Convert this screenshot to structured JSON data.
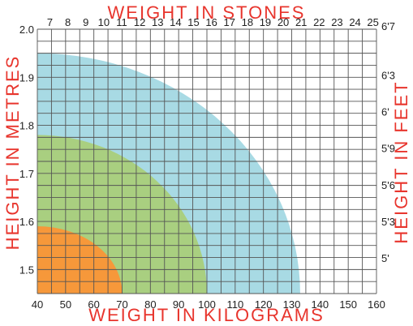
{
  "chart_data": {
    "type": "area",
    "title_top": "WEIGHT IN STONES",
    "xlabel": "WEIGHT IN KILOGRAMS",
    "ylabel_left": "HEIGHT IN METRES",
    "ylabel_right": "HEIGHT IN FEET",
    "xlim": [
      40,
      160
    ],
    "ylim": [
      1.45,
      2.0
    ],
    "x_ticks": [
      40,
      50,
      60,
      70,
      80,
      90,
      100,
      110,
      120,
      130,
      140,
      150,
      160
    ],
    "y_ticks": [
      1.5,
      1.6,
      1.7,
      1.8,
      1.9,
      2.0
    ],
    "y_tick_labels": [
      "1.5",
      "1.6",
      "1.7",
      "1.8",
      "1.9",
      "2.0"
    ],
    "stone_ticks": [
      7,
      8,
      9,
      10,
      11,
      12,
      13,
      14,
      15,
      16,
      17,
      18,
      19,
      20,
      21,
      22,
      23,
      24,
      25
    ],
    "feet_ticks": [
      {
        "label": "5'",
        "metres": 1.524
      },
      {
        "label": "5'3",
        "metres": 1.6
      },
      {
        "label": "5'6",
        "metres": 1.676
      },
      {
        "label": "5'9",
        "metres": 1.753
      },
      {
        "label": "6'",
        "metres": 1.829
      },
      {
        "label": "6'3",
        "metres": 1.905
      },
      {
        "label": "6'7",
        "metres": 2.007
      }
    ],
    "grid": true,
    "regions": [
      {
        "color": "#a8dae4",
        "x_at_base": 133,
        "y_at_left": 1.95
      },
      {
        "color": "#a9cf80",
        "x_at_base": 100,
        "y_at_left": 1.78
      },
      {
        "color": "#f6983a",
        "x_at_base": 70,
        "y_at_left": 1.59
      }
    ],
    "colors": {
      "title": "#e8352d",
      "grid": "#555555",
      "tick_text": "#222222"
    }
  }
}
